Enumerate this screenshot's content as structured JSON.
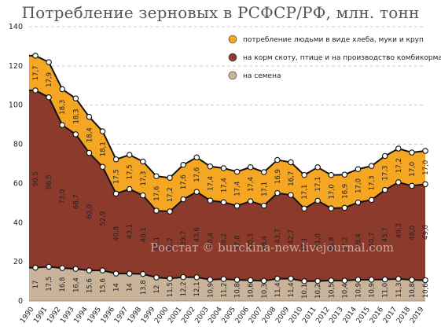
{
  "chart_data": {
    "type": "area",
    "title": "Потребление зерновых в РСФСР/РФ, млн. тонн",
    "watermark": "Росстат © burckina-new.livejournal.com",
    "x": [
      "1990",
      "1991",
      "1992",
      "1993",
      "1994",
      "1995",
      "1996",
      "1997",
      "1998",
      "1999",
      "2000",
      "2001",
      "2002",
      "2003",
      "2004",
      "2005",
      "2006",
      "2007",
      "2008",
      "2009",
      "2010",
      "2011",
      "2012",
      "2013",
      "2014",
      "2015",
      "2016",
      "2017",
      "2018",
      "2019"
    ],
    "ylim": [
      0,
      140
    ],
    "yticks": [
      "0",
      "20",
      "40",
      "60",
      "80",
      "100",
      "120",
      "140"
    ],
    "grid": true,
    "legend_position": "top-right",
    "series": [
      {
        "name": "на семена",
        "color": "#c9b49b",
        "values": [
          17,
          17.5,
          16.8,
          16.4,
          15.6,
          15.6,
          14,
          14,
          13.8,
          12,
          11.5,
          12.2,
          12.1,
          10.9,
          11.2,
          10.8,
          10.6,
          10.3,
          11.4,
          11.4,
          10.1,
          10.2,
          10.5,
          10.4,
          10.9,
          10.9,
          11.0,
          11.3,
          10.8,
          10.6
        ],
        "labels": [
          "17",
          "17,5",
          "16,8",
          "16,4",
          "15,6",
          "15,6",
          "14",
          "14",
          "13,8",
          "12",
          "11,5",
          "12,2",
          "12,1",
          "10,9",
          "11,2",
          "10,8",
          "10,6",
          "10,3",
          "11,4",
          "11,4",
          "10,1",
          "10,2",
          "10,5",
          "10,4",
          "10,9",
          "10,9",
          "11,0",
          "11,3",
          "10,8",
          "10,6"
        ]
      },
      {
        "name": "на корм скоту, птице и на производство комбикорма",
        "color": "#8b3a2c",
        "values": [
          90.5,
          86.5,
          73.0,
          68.7,
          60.0,
          52.9,
          40.8,
          43.1,
          40.1,
          34.1,
          34.2,
          39.7,
          43.6,
          40.4,
          39.2,
          37.8,
          40.3,
          38.4,
          43.7,
          42.7,
          37.1,
          41.0,
          36.8,
          37.2,
          39.4,
          40.7,
          45.7,
          49.3,
          48.0,
          49.0
        ],
        "labels": [
          "90,5",
          "86,5",
          "73,0",
          "68,7",
          "60,0",
          "52,9",
          "40,8",
          "43,1",
          "40,1",
          "34,1",
          "34,2",
          "39,7",
          "43,6",
          "40,4",
          "39,2",
          "37,8",
          "40,3",
          "38,4",
          "43,7",
          "42,7",
          "37,1",
          "41,0",
          "36,8",
          "37,2",
          "39,4",
          "40,7",
          "45,7",
          "49,3",
          "48,0",
          "49,0"
        ]
      },
      {
        "name": "потребление людьми в виде хлеба, муки и круп",
        "color": "#f5a623",
        "values": [
          17.7,
          17.9,
          18.3,
          18.3,
          18.4,
          18.1,
          17.5,
          17.5,
          17.3,
          17.6,
          17.2,
          17.6,
          17.6,
          17.4,
          17.4,
          17.4,
          17.4,
          17.1,
          16.9,
          16.7,
          17.1,
          17.1,
          17.0,
          16.9,
          17.0,
          17.3,
          17.3,
          17.2,
          17.0,
          17.0
        ],
        "labels": [
          "17,7",
          "17,9",
          "18,3",
          "18,3",
          "18,4",
          "18,1",
          "17,5",
          "17,5",
          "17,3",
          "17,6",
          "17,2",
          "17,6",
          "17,6",
          "17,4",
          "17,4",
          "17,4",
          "17,4",
          "17,1",
          "16,9",
          "16,7",
          "17,1",
          "17,1",
          "17,0",
          "16,9",
          "17,0",
          "17,3",
          "17,3",
          "17,2",
          "17,0",
          "17,0"
        ]
      }
    ],
    "legend_order": [
      "потребление людьми в виде хлеба, муки и круп",
      "на корм скоту, птице и на производство комбикорма",
      "на семена"
    ]
  }
}
